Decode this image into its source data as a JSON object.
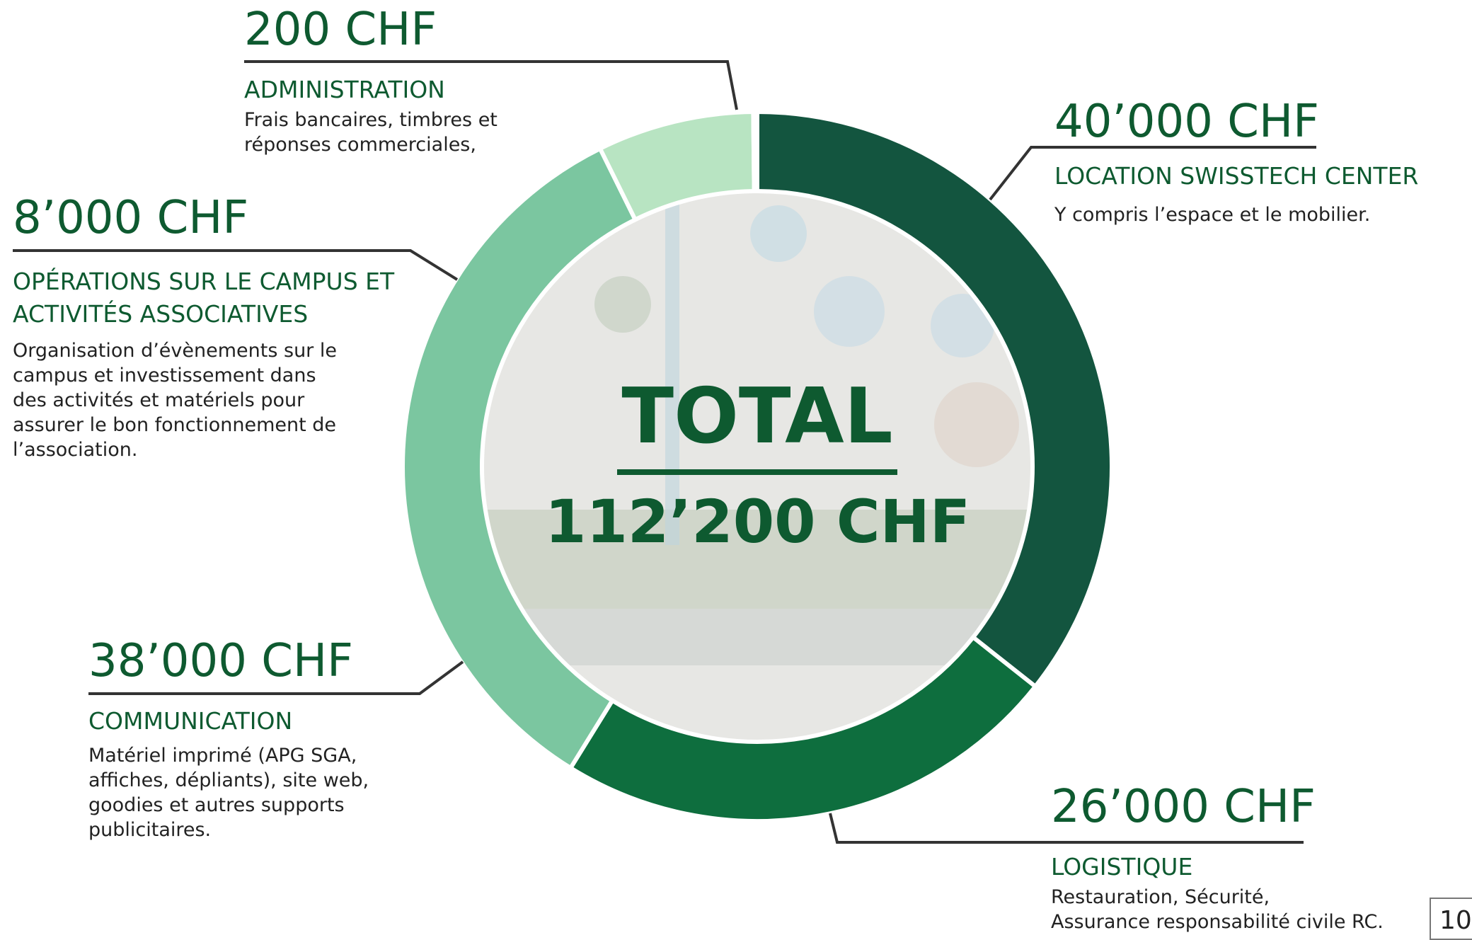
{
  "chart_data": {
    "type": "donut",
    "categories": [
      "LOCATION SWISSTECH CENTER",
      "LOGISTIQUE",
      "COMMUNICATION",
      "OPÉRATIONS SUR LE CAMPUS ET ACTIVITÉS ASSOCIATIVES",
      "ADMINISTRATION"
    ],
    "values": [
      40000,
      26000,
      38000,
      8000,
      200
    ],
    "value_labels": [
      "40’000 CHF",
      "26’000 CHF",
      "38’000 CHF",
      "8’000 CHF",
      "200 CHF"
    ],
    "colors": [
      "#13553f",
      "#0e6e3e",
      "#7bc6a0",
      "#b8e4c2",
      "#ebebeb"
    ],
    "descriptions": [
      [
        "Y compris l’espace et le mobilier."
      ],
      [
        "Restauration, Sécurité,",
        "Assurance responsabilité civile RC."
      ],
      [
        "Matériel imprimé (APG SGA,",
        "affiches, dépliants), site web,",
        "goodies et autres supports",
        "publicitaires."
      ],
      [
        "Organisation d’évènements sur le",
        "campus et investissement dans",
        "des activités et matériels pour",
        "assurer le bon fonctionnement de",
        "l’association."
      ],
      [
        "Frais bancaires, timbres et",
        "réponses commerciales,"
      ]
    ],
    "total_title": "TOTAL",
    "total_value": 112200,
    "total_value_label": "112’200 CHF"
  },
  "page_number": "10"
}
